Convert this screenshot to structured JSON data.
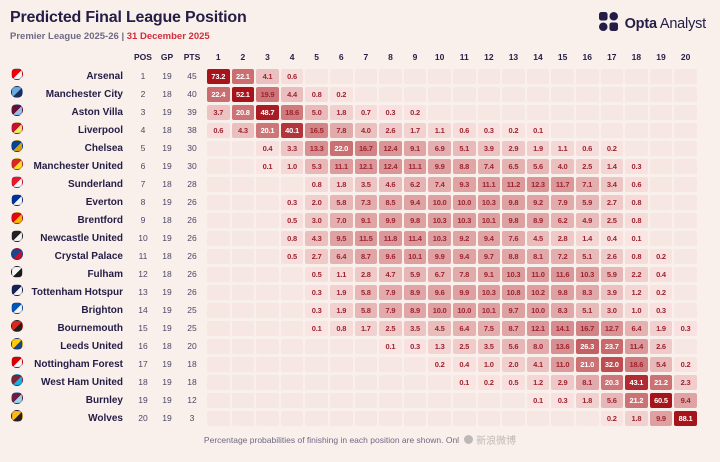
{
  "brand": {
    "bold": "Opta",
    "regular": "Analyst"
  },
  "watermark": {
    "text": "新浪微博"
  },
  "colors": {
    "background": "#f9efeb",
    "accent": "#241d45",
    "date_red": "#cf2e3b",
    "empty_cell": "#f6e7e2",
    "cell_text_dark": "#9c2430",
    "cell_text_light": "#ffffff"
  },
  "chart_data": {
    "type": "heatmap",
    "title": "Predicted Final League Position",
    "subtitle_league": "Premier League 2025-26",
    "subtitle_divider": "|",
    "subtitle_date": "31 December 2025",
    "stat_headers": [
      "POS",
      "GP",
      "PTS"
    ],
    "position_columns": [
      1,
      2,
      3,
      4,
      5,
      6,
      7,
      8,
      9,
      10,
      11,
      12,
      13,
      14,
      15,
      16,
      17,
      18,
      19,
      20
    ],
    "heat_scale": {
      "low": "#fbe9e7",
      "high": "#a6131a"
    },
    "value_unit": "%",
    "note": "Percentage probabilities of finishing in each position are shown. Onl",
    "teams": [
      {
        "name": "Arsenal",
        "pos": 1,
        "gp": 19,
        "pts": 45,
        "crest": [
          "#EF0107",
          "#f5f5f5"
        ],
        "probs": {
          "1": 73.2,
          "2": 22.1,
          "3": 4.1,
          "4": 0.6
        }
      },
      {
        "name": "Manchester City",
        "pos": 2,
        "gp": 18,
        "pts": 40,
        "crest": [
          "#6CABDD",
          "#1C2C5B"
        ],
        "probs": {
          "1": 22.4,
          "2": 52.1,
          "3": 19.9,
          "4": 4.4,
          "5": 0.8,
          "6": 0.2
        }
      },
      {
        "name": "Aston Villa",
        "pos": 3,
        "gp": 19,
        "pts": 39,
        "crest": [
          "#670E36",
          "#95BFE5"
        ],
        "probs": {
          "1": 3.7,
          "2": 20.8,
          "3": 48.7,
          "4": 18.6,
          "5": 5.0,
          "6": 1.8,
          "7": 0.7,
          "8": 0.3,
          "9": 0.2
        }
      },
      {
        "name": "Liverpool",
        "pos": 4,
        "gp": 18,
        "pts": 38,
        "crest": [
          "#C8102E",
          "#f6eb61"
        ],
        "probs": {
          "1": 0.6,
          "2": 4.3,
          "3": 20.1,
          "4": 40.1,
          "5": 16.5,
          "6": 7.8,
          "7": 4.0,
          "8": 2.6,
          "9": 1.7,
          "10": 1.1,
          "11": 0.6,
          "12": 0.3,
          "13": 0.2,
          "14": 0.1
        }
      },
      {
        "name": "Chelsea",
        "pos": 5,
        "gp": 19,
        "pts": 30,
        "crest": [
          "#034694",
          "#DBA111"
        ],
        "probs": {
          "3": 0.4,
          "4": 3.3,
          "5": 13.3,
          "6": 22.0,
          "7": 16.7,
          "8": 12.4,
          "9": 9.1,
          "10": 6.9,
          "11": 5.1,
          "12": 3.9,
          "13": 2.9,
          "14": 1.9,
          "15": 1.1,
          "16": 0.6,
          "17": 0.2
        }
      },
      {
        "name": "Manchester United",
        "pos": 6,
        "gp": 19,
        "pts": 30,
        "crest": [
          "#DA291C",
          "#FBE122"
        ],
        "probs": {
          "3": 0.1,
          "4": 1.0,
          "5": 5.3,
          "6": 11.1,
          "7": 12.1,
          "8": 12.4,
          "9": 11.1,
          "10": 9.9,
          "11": 8.8,
          "12": 7.4,
          "13": 6.5,
          "14": 5.6,
          "15": 4.0,
          "16": 2.5,
          "17": 1.4,
          "18": 0.3
        }
      },
      {
        "name": "Sunderland",
        "pos": 7,
        "gp": 18,
        "pts": 28,
        "crest": [
          "#EB172B",
          "#f5f5f5"
        ],
        "probs": {
          "5": 0.8,
          "6": 1.8,
          "7": 3.5,
          "8": 4.6,
          "9": 6.2,
          "10": 7.4,
          "11": 9.3,
          "12": 11.1,
          "13": 11.2,
          "14": 12.3,
          "15": 11.7,
          "16": 7.1,
          "17": 3.4,
          "18": 0.6
        }
      },
      {
        "name": "Everton",
        "pos": 8,
        "gp": 19,
        "pts": 26,
        "crest": [
          "#003399",
          "#f5f5f5"
        ],
        "probs": {
          "4": 0.3,
          "5": 2.0,
          "6": 5.8,
          "7": 7.3,
          "8": 8.5,
          "9": 9.4,
          "10": 10.0,
          "11": 10.0,
          "12": 10.3,
          "13": 9.8,
          "14": 9.2,
          "15": 7.9,
          "16": 5.9,
          "17": 2.7,
          "18": 0.8
        }
      },
      {
        "name": "Brentford",
        "pos": 9,
        "gp": 18,
        "pts": 26,
        "crest": [
          "#E30613",
          "#FBB800"
        ],
        "probs": {
          "4": 0.5,
          "5": 3.0,
          "6": 7.0,
          "7": 9.1,
          "8": 9.9,
          "9": 9.8,
          "10": 10.3,
          "11": 10.3,
          "12": 10.1,
          "13": 9.8,
          "14": 8.9,
          "15": 6.2,
          "16": 4.9,
          "17": 2.5,
          "18": 0.8
        }
      },
      {
        "name": "Newcastle United",
        "pos": 10,
        "gp": 19,
        "pts": 26,
        "crest": [
          "#241F20",
          "#f5f5f5"
        ],
        "probs": {
          "4": 0.8,
          "5": 4.3,
          "6": 9.5,
          "7": 11.5,
          "8": 11.8,
          "9": 11.4,
          "10": 10.3,
          "11": 9.2,
          "12": 9.4,
          "13": 7.6,
          "14": 4.5,
          "15": 2.8,
          "16": 1.4,
          "17": 0.4,
          "18": 0.1
        }
      },
      {
        "name": "Crystal Palace",
        "pos": 11,
        "gp": 18,
        "pts": 26,
        "crest": [
          "#1B458F",
          "#C4122E"
        ],
        "probs": {
          "4": 0.5,
          "5": 2.7,
          "6": 6.4,
          "7": 8.7,
          "8": 9.6,
          "9": 10.1,
          "10": 9.9,
          "11": 9.4,
          "12": 9.7,
          "13": 8.8,
          "14": 8.1,
          "15": 7.2,
          "16": 5.1,
          "17": 2.6,
          "18": 0.8,
          "19": 0.2
        }
      },
      {
        "name": "Fulham",
        "pos": 12,
        "gp": 18,
        "pts": 26,
        "crest": [
          "#f5f5f5",
          "#1a1a1a"
        ],
        "probs": {
          "5": 0.5,
          "6": 1.1,
          "7": 2.8,
          "8": 4.7,
          "9": 5.9,
          "10": 6.7,
          "11": 7.8,
          "12": 9.1,
          "13": 10.3,
          "14": 11.0,
          "15": 11.6,
          "16": 10.3,
          "17": 5.9,
          "18": 2.2,
          "19": 0.4
        }
      },
      {
        "name": "Tottenham Hotspur",
        "pos": 13,
        "gp": 19,
        "pts": 26,
        "crest": [
          "#132257",
          "#f5f5f5"
        ],
        "probs": {
          "5": 0.3,
          "6": 1.9,
          "7": 5.8,
          "8": 7.9,
          "9": 8.9,
          "10": 9.6,
          "11": 9.9,
          "12": 10.3,
          "13": 10.8,
          "14": 10.2,
          "15": 9.8,
          "16": 8.3,
          "17": 3.9,
          "18": 1.2,
          "19": 0.2
        }
      },
      {
        "name": "Brighton",
        "pos": 14,
        "gp": 19,
        "pts": 25,
        "crest": [
          "#0057B8",
          "#f5f5f5"
        ],
        "probs": {
          "5": 0.3,
          "6": 1.9,
          "7": 5.8,
          "8": 7.9,
          "9": 8.9,
          "10": 10.0,
          "11": 10.0,
          "12": 10.1,
          "13": 9.7,
          "14": 10.0,
          "15": 8.3,
          "16": 5.1,
          "17": 3.0,
          "18": 1.0,
          "19": 0.3
        }
      },
      {
        "name": "Bournemouth",
        "pos": 15,
        "gp": 19,
        "pts": 25,
        "crest": [
          "#DA291C",
          "#231F20"
        ],
        "probs": {
          "5": 0.1,
          "6": 0.8,
          "7": 1.7,
          "8": 2.5,
          "9": 3.5,
          "10": 4.5,
          "11": 6.4,
          "12": 7.5,
          "13": 8.7,
          "14": 12.1,
          "15": 14.1,
          "16": 16.7,
          "17": 12.7,
          "18": 6.4,
          "19": 1.9,
          "20": 0.3
        }
      },
      {
        "name": "Leeds United",
        "pos": 16,
        "gp": 18,
        "pts": 20,
        "crest": [
          "#FFCD00",
          "#1D428A"
        ],
        "probs": {
          "8": 0.1,
          "9": 0.3,
          "10": 1.3,
          "11": 2.5,
          "12": 3.5,
          "13": 5.6,
          "14": 8.0,
          "15": 13.6,
          "16": 26.3,
          "17": 23.7,
          "18": 11.4,
          "19": 2.6
        }
      },
      {
        "name": "Nottingham Forest",
        "pos": 17,
        "gp": 19,
        "pts": 18,
        "crest": [
          "#DD0000",
          "#f5f5f5"
        ],
        "probs": {
          "10": 0.2,
          "11": 0.4,
          "12": 1.0,
          "13": 2.0,
          "14": 4.1,
          "15": 11.0,
          "16": 21.0,
          "17": 32.0,
          "18": 18.6,
          "19": 5.4,
          "20": 0.2
        }
      },
      {
        "name": "West Ham United",
        "pos": 18,
        "gp": 19,
        "pts": 18,
        "crest": [
          "#7A263A",
          "#1BB1E7"
        ],
        "probs": {
          "11": 0.1,
          "12": 0.2,
          "13": 0.5,
          "14": 1.2,
          "15": 2.9,
          "16": 8.1,
          "17": 20.3,
          "18": 43.1,
          "19": 21.2,
          "20": 2.3
        }
      },
      {
        "name": "Burnley",
        "pos": 19,
        "gp": 19,
        "pts": 12,
        "crest": [
          "#6C1D45",
          "#99D6EA"
        ],
        "probs": {
          "14": 0.1,
          "15": 0.3,
          "16": 1.8,
          "17": 5.6,
          "18": 21.2,
          "19": 60.5,
          "20": 9.4
        }
      },
      {
        "name": "Wolves",
        "pos": 20,
        "gp": 19,
        "pts": 3,
        "crest": [
          "#FDB913",
          "#231F20"
        ],
        "probs": {
          "17": 0.2,
          "18": 1.8,
          "19": 9.9,
          "20": 88.1
        }
      }
    ]
  }
}
